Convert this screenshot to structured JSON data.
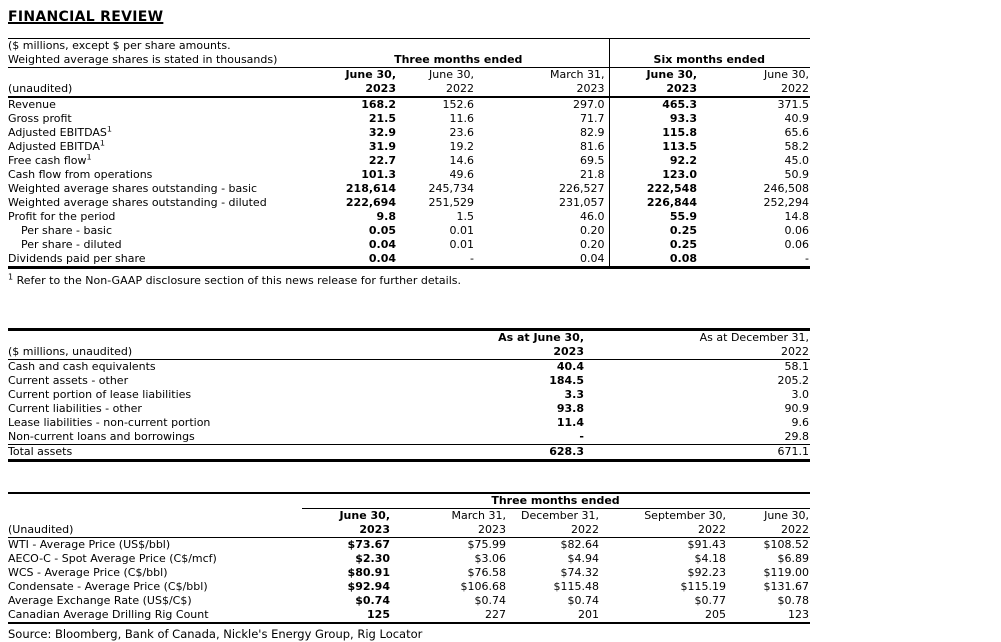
{
  "page": {
    "title": "FINANCIAL REVIEW"
  },
  "colors": {
    "text": "#000000",
    "background": "#ffffff",
    "rule": "#000000"
  },
  "table1": {
    "intro": [
      "($ millions, except $ per share amounts.",
      "Weighted average shares is stated in thousands)"
    ],
    "period_groups": [
      {
        "label": "Three months ended"
      },
      {
        "label": "Six months ended"
      }
    ],
    "columns": [
      {
        "date": "June 30,",
        "year": "2023",
        "bold": true
      },
      {
        "date": "June 30,",
        "year": "2022",
        "bold": false
      },
      {
        "date": "March 31,",
        "year": "2023",
        "bold": false
      },
      {
        "date": "June 30,",
        "year": "2023",
        "bold": true
      },
      {
        "date": "June 30,",
        "year": "2022",
        "bold": false
      }
    ],
    "corner_label": "(unaudited)",
    "rows": [
      {
        "label": "Revenue",
        "values": [
          "168.2",
          "152.6",
          "297.0",
          "465.3",
          "371.5"
        ]
      },
      {
        "label": "Gross profit",
        "values": [
          "21.5",
          "11.6",
          "71.7",
          "93.3",
          "40.9"
        ]
      },
      {
        "label": "Adjusted EBITDAS",
        "sup": "1",
        "values": [
          "32.9",
          "23.6",
          "82.9",
          "115.8",
          "65.6"
        ]
      },
      {
        "label": "Adjusted EBITDA",
        "sup": "1",
        "values": [
          "31.9",
          "19.2",
          "81.6",
          "113.5",
          "58.2"
        ]
      },
      {
        "label": "Free cash flow",
        "sup": "1",
        "values": [
          "22.7",
          "14.6",
          "69.5",
          "92.2",
          "45.0"
        ]
      },
      {
        "label": "Cash flow from operations",
        "values": [
          "101.3",
          "49.6",
          "21.8",
          "123.0",
          "50.9"
        ]
      },
      {
        "label": "Weighted average shares outstanding - basic",
        "values": [
          "218,614",
          "245,734",
          "226,527",
          "222,548",
          "246,508"
        ]
      },
      {
        "label": "Weighted average shares outstanding - diluted",
        "values": [
          "222,694",
          "251,529",
          "231,057",
          "226,844",
          "252,294"
        ]
      },
      {
        "label": "Profit for the period",
        "values": [
          "9.8",
          "1.5",
          "46.0",
          "55.9",
          "14.8"
        ]
      },
      {
        "label": "Per share - basic",
        "indent": true,
        "values": [
          "0.05",
          "0.01",
          "0.20",
          "0.25",
          "0.06"
        ]
      },
      {
        "label": "Per share - diluted",
        "indent": true,
        "values": [
          "0.04",
          "0.01",
          "0.20",
          "0.25",
          "0.06"
        ]
      },
      {
        "label": "Dividends paid per share",
        "values": [
          "0.04",
          "-",
          "0.04",
          "0.08",
          "-"
        ]
      }
    ],
    "footnote_sup": "1",
    "footnote": "Refer to the Non-GAAP disclosure section of this news release for further details."
  },
  "table2": {
    "corner_label": "($ millions, unaudited)",
    "columns": [
      {
        "date": "As at June 30,",
        "year": "2023",
        "bold": true
      },
      {
        "date": "As at December 31,",
        "year": "2022",
        "bold": false
      }
    ],
    "rows": [
      {
        "label": "Cash and cash equivalents",
        "values": [
          "40.4",
          "58.1"
        ]
      },
      {
        "label": "Current assets - other",
        "values": [
          "184.5",
          "205.2"
        ]
      },
      {
        "label": "Current portion of lease liabilities",
        "values": [
          "3.3",
          "3.0"
        ]
      },
      {
        "label": "Current liabilities - other",
        "values": [
          "93.8",
          "90.9"
        ]
      },
      {
        "label": "Lease liabilities - non-current portion",
        "values": [
          "11.4",
          "9.6"
        ]
      },
      {
        "label": "Non-current loans and borrowings",
        "values": [
          "-",
          "29.8"
        ]
      },
      {
        "label": "Total assets",
        "total": true,
        "values": [
          "628.3",
          "671.1"
        ]
      }
    ]
  },
  "table3": {
    "group_header": "Three months ended",
    "corner_label": "(Unaudited)",
    "columns": [
      {
        "date": "June 30,",
        "year": "2023",
        "bold": true
      },
      {
        "date": "March 31,",
        "year": "2023",
        "bold": false
      },
      {
        "date": "December 31,",
        "year": "2022",
        "bold": false
      },
      {
        "date": "September 30,",
        "year": "2022",
        "bold": false
      },
      {
        "date": "June 30,",
        "year": "2022",
        "bold": false
      }
    ],
    "rows": [
      {
        "label": "WTI - Average Price (US$/bbl)",
        "values": [
          "$73.67",
          "$75.99",
          "$82.64",
          "$91.43",
          "$108.52"
        ]
      },
      {
        "label": "AECO-C - Spot Average Price (C$/mcf)",
        "values": [
          "$2.30",
          "$3.06",
          "$4.94",
          "$4.18",
          "$6.89"
        ]
      },
      {
        "label": "WCS - Average Price (C$/bbl)",
        "values": [
          "$80.91",
          "$76.58",
          "$74.32",
          "$92.23",
          "$119.00"
        ]
      },
      {
        "label": "Condensate - Average Price (C$/bbl)",
        "values": [
          "$92.94",
          "$106.68",
          "$115.48",
          "$115.19",
          "$131.67"
        ]
      },
      {
        "label": "Average Exchange Rate (US$/C$)",
        "values": [
          "$0.74",
          "$0.74",
          "$0.74",
          "$0.77",
          "$0.78"
        ]
      },
      {
        "label": "Canadian Average Drilling Rig Count",
        "values": [
          "125",
          "227",
          "201",
          "205",
          "123"
        ]
      }
    ]
  },
  "source_line": "Source: Bloomberg, Bank of Canada, Nickle's Energy Group, Rig Locator"
}
